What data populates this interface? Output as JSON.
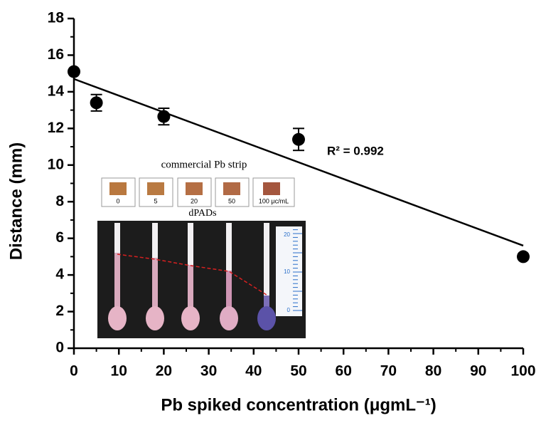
{
  "chart_data": {
    "type": "scatter",
    "x_label": "Pb spiked concentration (μgmL⁻¹)",
    "y_label": "Distance (mm)",
    "x": [
      0,
      5,
      20,
      50,
      100
    ],
    "values": [
      15.1,
      13.4,
      12.65,
      11.4,
      5.0
    ],
    "errors": [
      null,
      0.45,
      0.45,
      0.6,
      null
    ],
    "color": "#000000",
    "fit": {
      "x": [
        0,
        100
      ],
      "values": [
        14.7,
        5.6
      ]
    },
    "annotation": "R² = 0.992",
    "xlim": [
      0,
      100
    ],
    "xticks": [
      0,
      10,
      20,
      30,
      40,
      50,
      60,
      70,
      80,
      90,
      100
    ],
    "ylim": [
      0,
      18
    ],
    "yticks": [
      0,
      2,
      4,
      6,
      8,
      10,
      12,
      14,
      16,
      18
    ],
    "inset": {
      "title": "commercial Pb strip",
      "strip_labels": [
        "0",
        "5",
        "20",
        "50",
        "100 μc/mL"
      ],
      "subtitle": "dPADs",
      "ruler_labels": [
        "20",
        "10",
        "0"
      ]
    }
  }
}
